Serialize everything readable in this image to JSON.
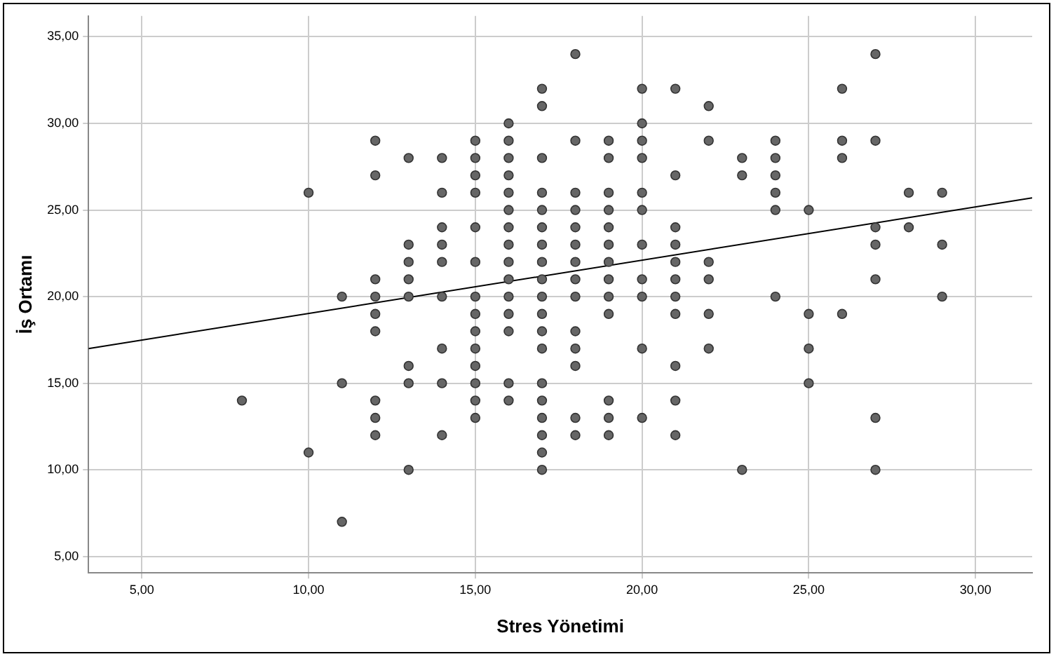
{
  "chart_data": {
    "type": "scatter",
    "xlabel": "Stres Yönetimi",
    "ylabel": "İş Ortamı",
    "xlim": [
      3.4,
      31.7
    ],
    "ylim": [
      4.05,
      36.2
    ],
    "xticks": [
      {
        "value": 5,
        "label": "5,00"
      },
      {
        "value": 10,
        "label": "10,00"
      },
      {
        "value": 15,
        "label": "15,00"
      },
      {
        "value": 20,
        "label": "20,00"
      },
      {
        "value": 25,
        "label": "25,00"
      },
      {
        "value": 30,
        "label": "30,00"
      }
    ],
    "yticks": [
      {
        "value": 5,
        "label": "5,00"
      },
      {
        "value": 10,
        "label": "10,00"
      },
      {
        "value": 15,
        "label": "15,00"
      },
      {
        "value": 20,
        "label": "20,00"
      },
      {
        "value": 25,
        "label": "25,00"
      },
      {
        "value": 30,
        "label": "30,00"
      },
      {
        "value": 35,
        "label": "35,00"
      }
    ],
    "grid": true,
    "legend": false,
    "marker": "circle",
    "series": [
      {
        "type": "scatter",
        "color": "#666666",
        "x": [
          8,
          10,
          10,
          11,
          11,
          11,
          12,
          12,
          12,
          12,
          12,
          12,
          12,
          12,
          12,
          13,
          13,
          13,
          13,
          13,
          13,
          13,
          13,
          14,
          14,
          14,
          14,
          14,
          14,
          14,
          14,
          14,
          15,
          15,
          15,
          15,
          15,
          15,
          15,
          15,
          15,
          15,
          15,
          15,
          15,
          15,
          16,
          16,
          16,
          16,
          16,
          16,
          16,
          16,
          16,
          16,
          16,
          16,
          16,
          16,
          16,
          17,
          17,
          17,
          17,
          17,
          17,
          17,
          17,
          17,
          17,
          17,
          17,
          17,
          17,
          17,
          17,
          17,
          17,
          17,
          18,
          18,
          18,
          18,
          18,
          18,
          18,
          18,
          18,
          18,
          18,
          18,
          18,
          18,
          19,
          19,
          19,
          19,
          19,
          19,
          19,
          19,
          19,
          19,
          19,
          19,
          19,
          20,
          20,
          20,
          20,
          20,
          20,
          20,
          20,
          20,
          20,
          20,
          21,
          21,
          21,
          21,
          21,
          21,
          21,
          21,
          21,
          21,
          21,
          22,
          22,
          22,
          22,
          22,
          22,
          23,
          23,
          23,
          24,
          24,
          24,
          24,
          24,
          24,
          25,
          25,
          25,
          25,
          26,
          26,
          26,
          26,
          27,
          27,
          27,
          27,
          27,
          27,
          27,
          28,
          28,
          29,
          29,
          29
        ],
        "values": [
          14,
          26,
          11,
          20,
          15,
          7,
          29,
          27,
          21,
          20,
          19,
          18,
          14,
          13,
          12,
          28,
          23,
          22,
          21,
          20,
          16,
          15,
          10,
          28,
          26,
          24,
          23,
          22,
          20,
          17,
          15,
          12,
          29,
          28,
          27,
          26,
          24,
          22,
          20,
          19,
          18,
          17,
          16,
          15,
          14,
          13,
          30,
          29,
          28,
          27,
          26,
          25,
          24,
          23,
          22,
          21,
          20,
          19,
          18,
          15,
          14,
          32,
          31,
          28,
          26,
          25,
          24,
          23,
          22,
          21,
          20,
          19,
          18,
          17,
          15,
          14,
          13,
          12,
          11,
          10,
          34,
          29,
          26,
          25,
          24,
          23,
          22,
          21,
          20,
          18,
          17,
          16,
          13,
          12,
          29,
          28,
          26,
          25,
          24,
          23,
          22,
          21,
          20,
          19,
          14,
          13,
          12,
          32,
          30,
          29,
          28,
          26,
          25,
          23,
          21,
          20,
          17,
          13,
          32,
          27,
          24,
          23,
          22,
          21,
          20,
          19,
          16,
          14,
          12,
          31,
          29,
          22,
          21,
          19,
          17,
          28,
          27,
          10,
          29,
          28,
          27,
          26,
          25,
          20,
          25,
          19,
          17,
          15,
          32,
          29,
          28,
          19,
          34,
          29,
          24,
          23,
          21,
          13,
          10,
          26,
          24,
          26,
          23,
          20
        ]
      },
      {
        "type": "line",
        "color": "#000000",
        "marker": "none",
        "x": [
          3.4,
          31.7
        ],
        "values": [
          17.0,
          25.7
        ]
      }
    ]
  }
}
